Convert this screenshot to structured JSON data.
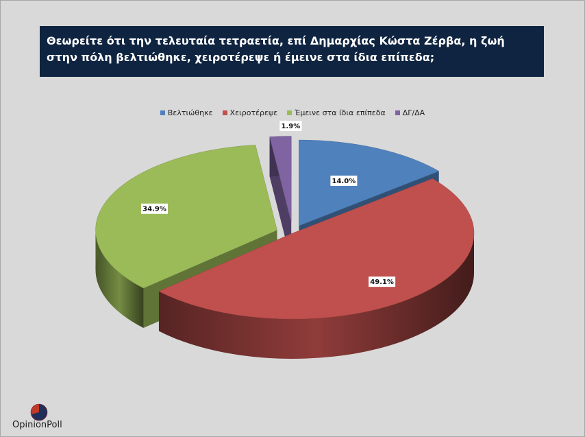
{
  "title": "Θεωρείτε ότι την τελευταία τετραετία, επί Δημαρχίας Κώστα Ζέρβα, η ζωή στην πόλη βελτιώθηκε, χειροτέρεψε ή έμεινε στα ίδια επίπεδα;",
  "chart_data": {
    "type": "pie",
    "style": "3d-exploded",
    "categories": [
      "Βελτιώθηκε",
      "Χειροτέρεψε",
      "Έμεινε στα ίδια επίπεδα",
      "ΔΓ/ΔΑ"
    ],
    "values": [
      14.0,
      49.1,
      34.9,
      1.9
    ],
    "data_labels": [
      "14.0%",
      "49.1%",
      "34.9%",
      "1.9%"
    ],
    "colors": [
      "#4f81bd",
      "#c0504d",
      "#9bbb59",
      "#8064a2"
    ],
    "legend_position": "top"
  },
  "logo": {
    "text": "OpinionPoll"
  }
}
